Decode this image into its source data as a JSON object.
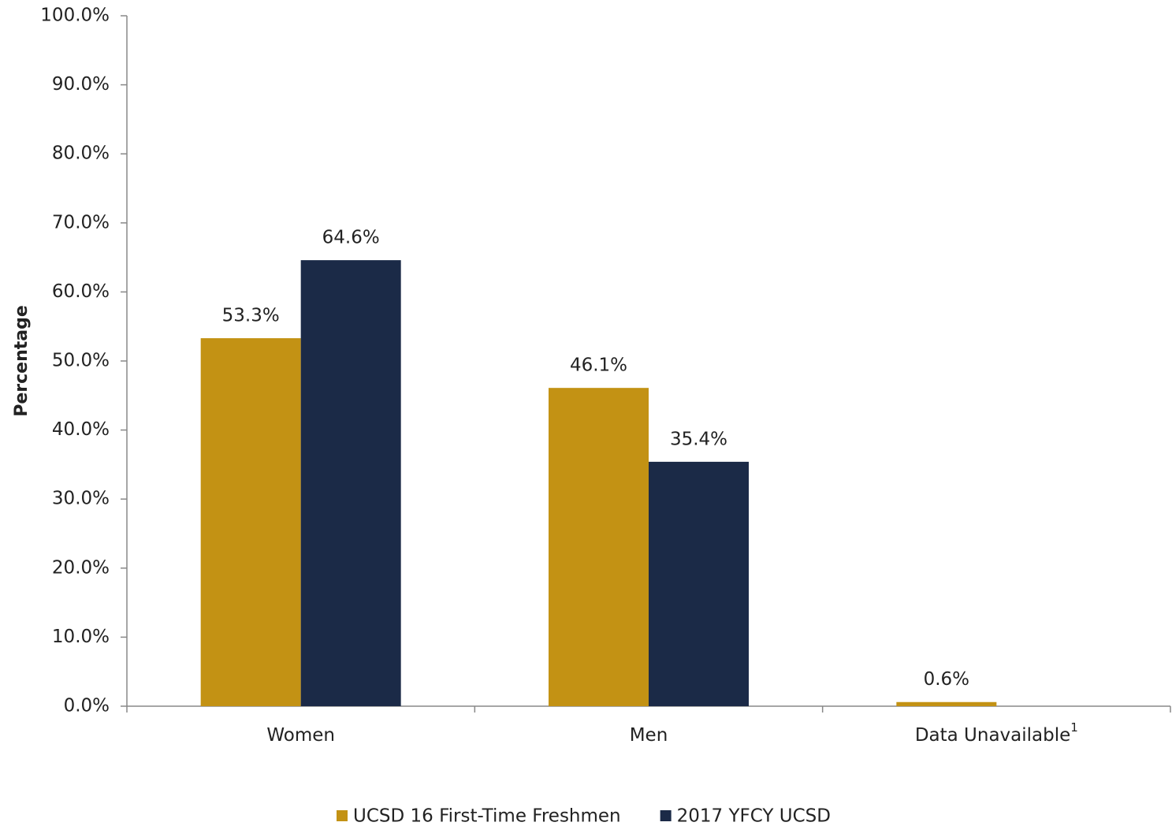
{
  "chart_data": {
    "type": "bar",
    "y_label": "Percentage",
    "categories": [
      "Women",
      "Men",
      "Data Unavailable"
    ],
    "category_superscripts": [
      null,
      null,
      "1"
    ],
    "series": [
      {
        "name": "UCSD 16 First-Time Freshmen",
        "color": "#c39214",
        "values": [
          53.3,
          46.1,
          0.6
        ],
        "value_labels": [
          "53.3%",
          "46.1%",
          "0.6%"
        ]
      },
      {
        "name": "2017 YFCY UCSD",
        "color": "#1b2a47",
        "values": [
          64.6,
          35.4,
          null
        ],
        "value_labels": [
          "64.6%",
          "35.4%",
          null
        ]
      }
    ],
    "ylim": [
      0,
      100
    ],
    "yticks": [
      {
        "value": 0,
        "label": "0.0%"
      },
      {
        "value": 10,
        "label": "10.0%"
      },
      {
        "value": 20,
        "label": "20.0%"
      },
      {
        "value": 30,
        "label": "30.0%"
      },
      {
        "value": 40,
        "label": "40.0%"
      },
      {
        "value": 50,
        "label": "50.0%"
      },
      {
        "value": 60,
        "label": "60.0%"
      },
      {
        "value": 70,
        "label": "70.0%"
      },
      {
        "value": 80,
        "label": "80.0%"
      },
      {
        "value": 90,
        "label": "90.0%"
      },
      {
        "value": 100,
        "label": "100.0%"
      }
    ],
    "grid": false,
    "legend": "bottom"
  }
}
